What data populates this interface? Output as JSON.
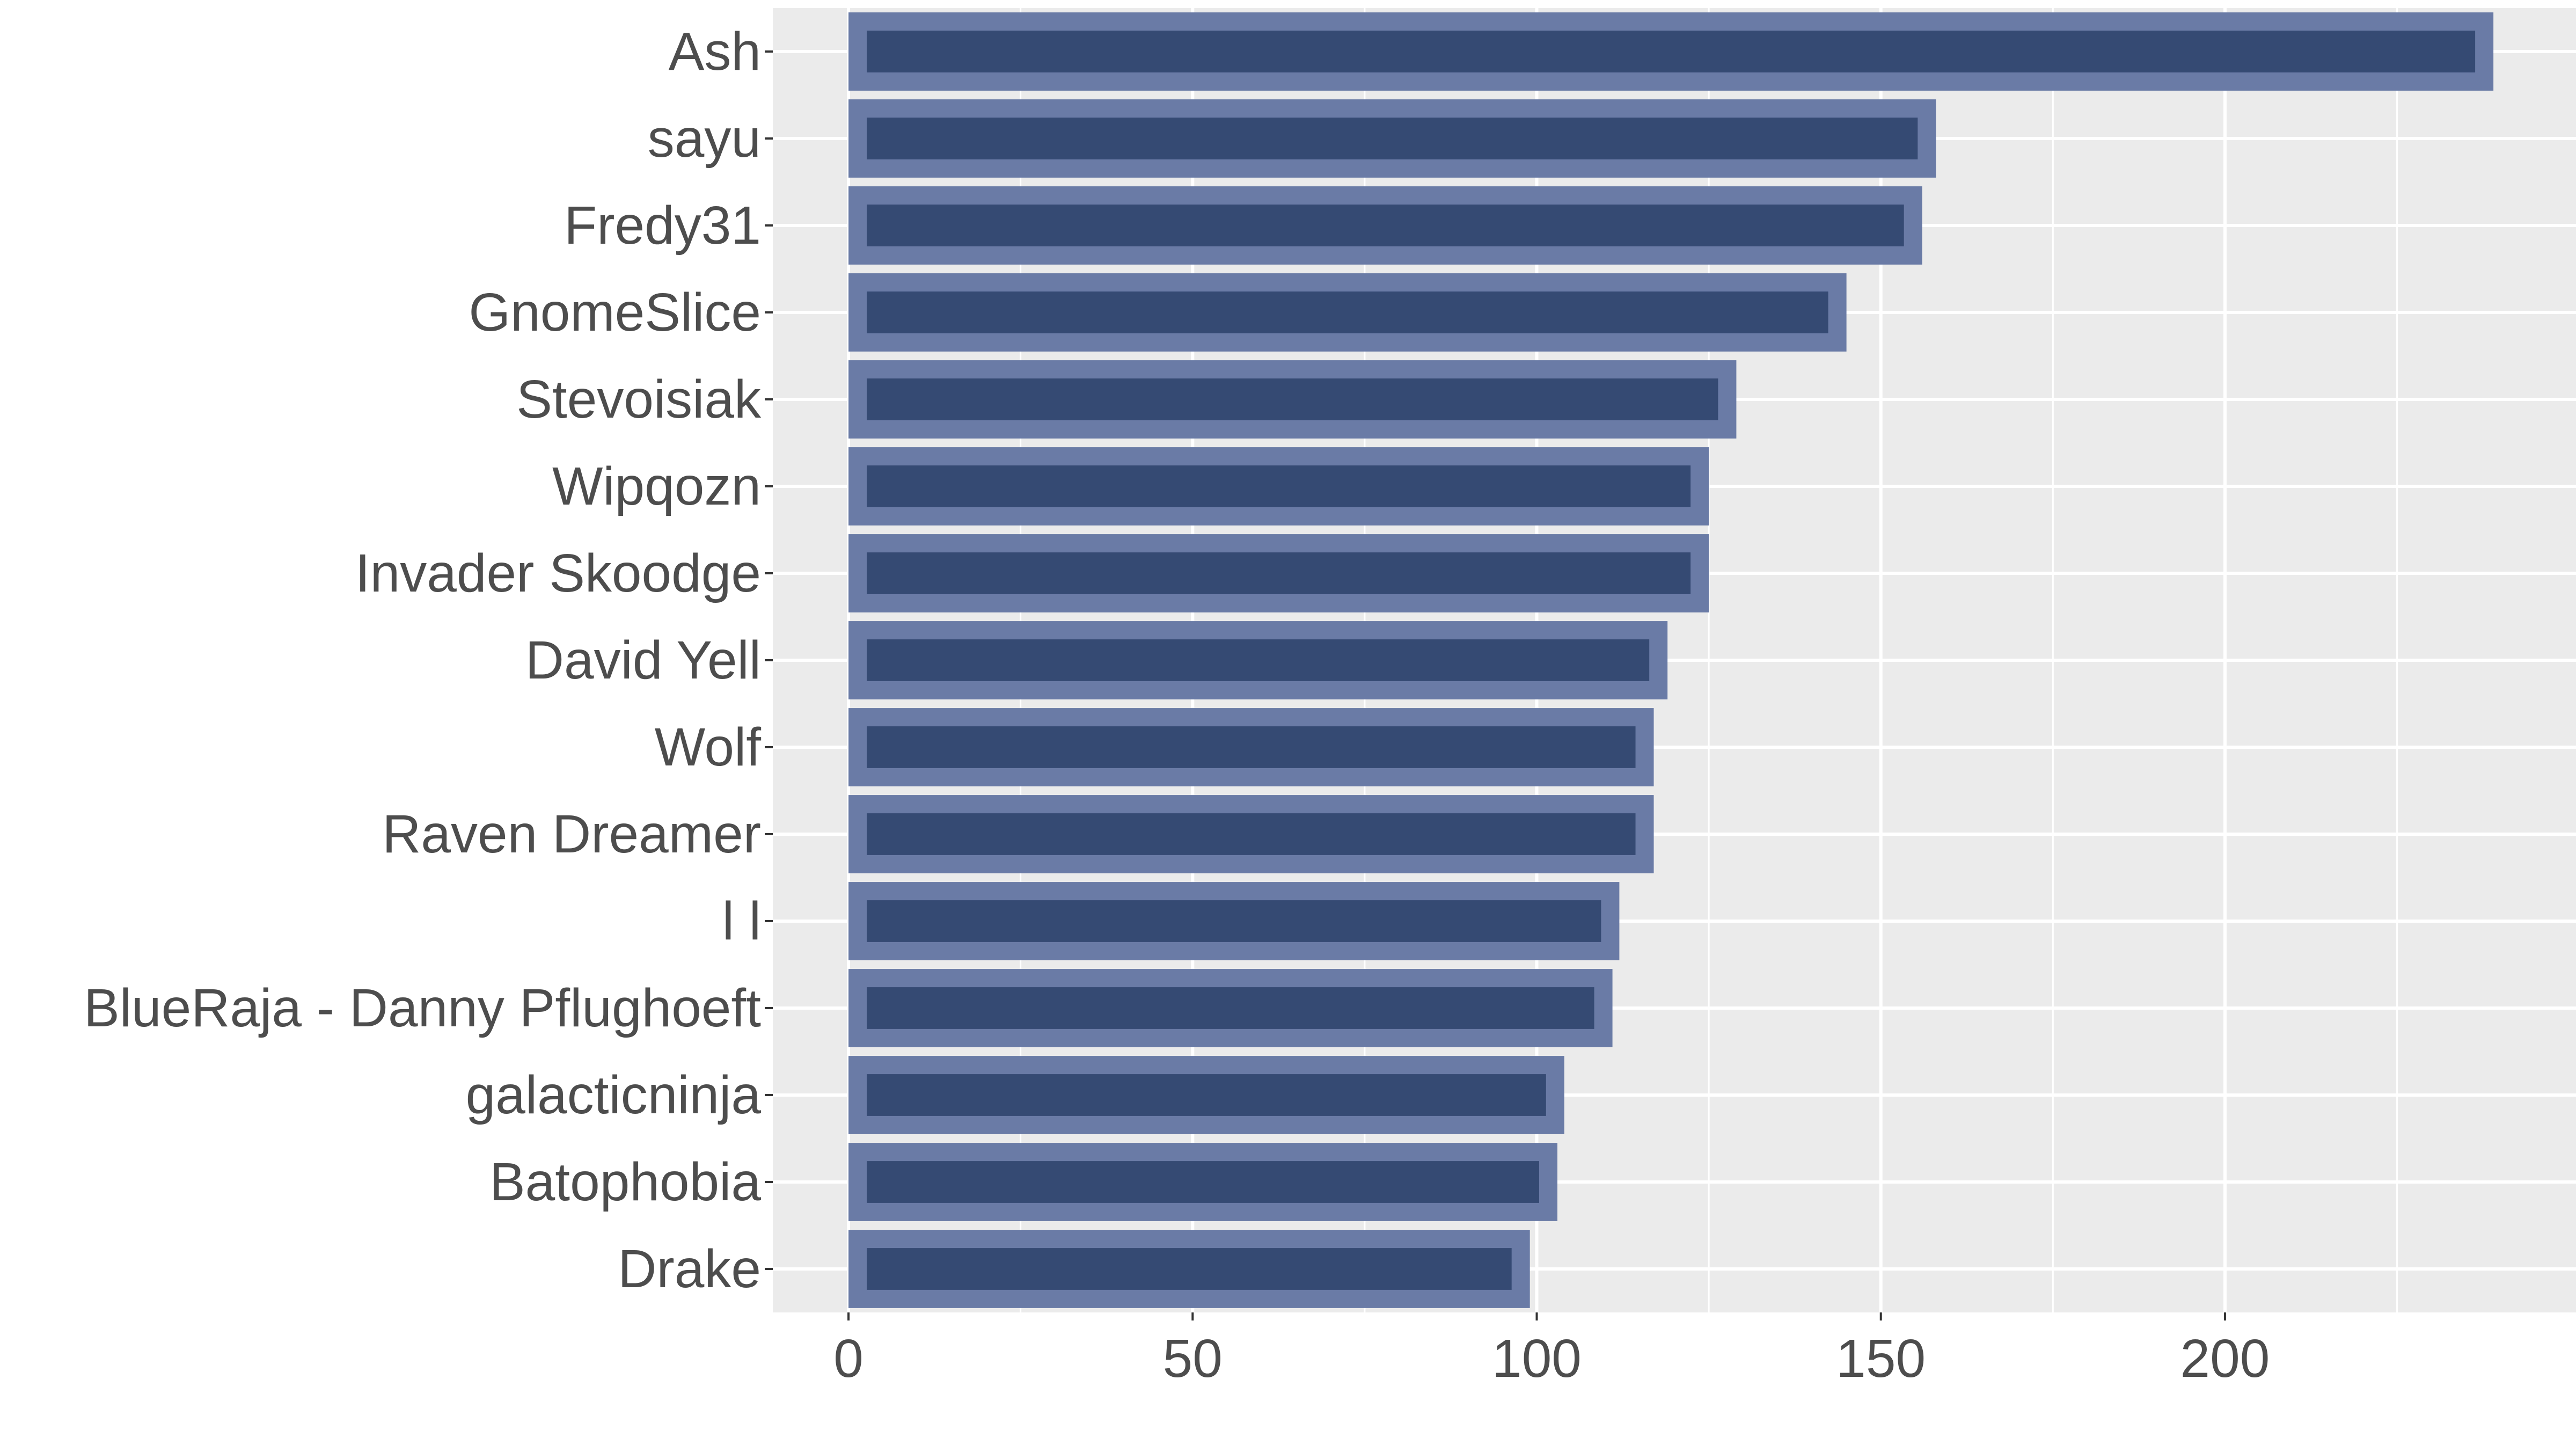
{
  "chart_data": {
    "type": "bar",
    "orientation": "horizontal",
    "title": "",
    "xlabel": "",
    "ylabel": "",
    "categories": [
      "Ash",
      "sayu",
      "Fredy31",
      "GnomeSlice",
      "Stevoisiak",
      "Wipqozn",
      "Invader Skoodge",
      "David Yell",
      "Wolf",
      "Raven Dreamer",
      "l l",
      "BlueRaja - Danny Pflughoeft",
      "galacticninja",
      "Batophobia",
      "Drake"
    ],
    "values": [
      239,
      158,
      156,
      145,
      129,
      125,
      125,
      119,
      117,
      117,
      112,
      111,
      104,
      103,
      99
    ],
    "xlim": [
      -11,
      251
    ],
    "xticks": [
      0,
      50,
      100,
      150,
      200
    ],
    "xtick_labels": [
      "0",
      "50",
      "100",
      "150",
      "200"
    ],
    "grid": true,
    "legend": "none",
    "colors": {
      "panel": "#EBEBEB",
      "grid": "#FFFFFF",
      "bar_fill": "#354A73",
      "bar_outline": "#6A7BA6",
      "text": "#4D4D4D"
    }
  }
}
